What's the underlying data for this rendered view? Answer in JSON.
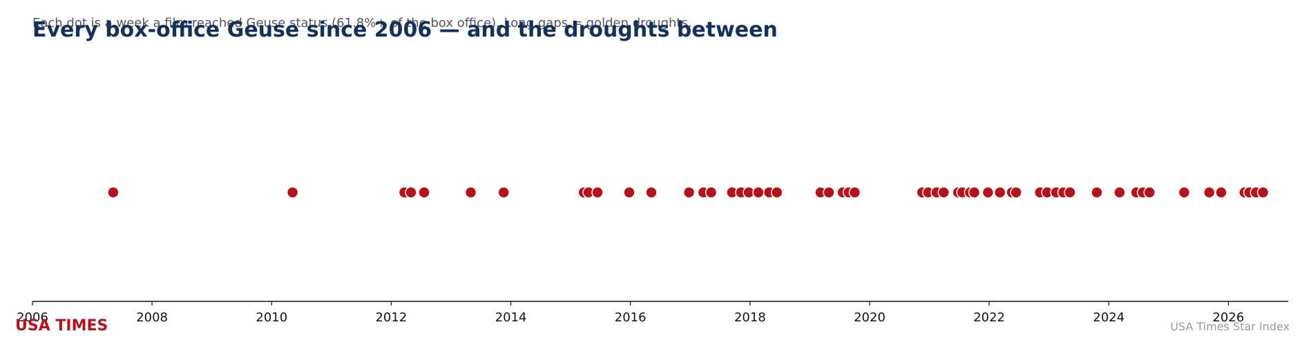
{
  "chart_data": {
    "type": "scatter",
    "title": "Every box-office Geuse since 2006 — and the droughts between",
    "subtitle": "Each dot is a week a film reached Geuse status (61.8%+ of the box office). Long gaps = golden droughts.",
    "xlabel": "",
    "ylabel": "",
    "xlim": [
      2006,
      2027
    ],
    "ticks": [
      "2006",
      "2008",
      "2010",
      "2012",
      "2014",
      "2016",
      "2018",
      "2020",
      "2022",
      "2024",
      "2026"
    ],
    "y_axis_visible": false,
    "grid": false,
    "x": [
      2007.35,
      2010.35,
      2012.22,
      2012.33,
      2012.55,
      2013.33,
      2013.88,
      2015.22,
      2015.3,
      2015.45,
      2015.98,
      2016.35,
      2016.98,
      2017.22,
      2017.35,
      2017.7,
      2017.85,
      2017.98,
      2018.14,
      2018.32,
      2018.45,
      2019.18,
      2019.32,
      2019.55,
      2019.65,
      2019.75,
      2020.88,
      2020.98,
      2021.12,
      2021.24,
      2021.48,
      2021.55,
      2021.68,
      2021.75,
      2021.98,
      2022.18,
      2022.38,
      2022.45,
      2022.85,
      2022.97,
      2023.12,
      2023.24,
      2023.35,
      2023.8,
      2024.18,
      2024.46,
      2024.57,
      2024.68,
      2025.26,
      2025.68,
      2025.88,
      2026.27,
      2026.35,
      2026.46,
      2026.58
    ],
    "colors": {
      "dot": "#b5121b",
      "dot_outline": "#ffffff",
      "title": "#14315c",
      "subtitle": "#555555",
      "axis": "#111111"
    }
  },
  "brand": "USA TIMES",
  "source": "USA Times Star Index"
}
